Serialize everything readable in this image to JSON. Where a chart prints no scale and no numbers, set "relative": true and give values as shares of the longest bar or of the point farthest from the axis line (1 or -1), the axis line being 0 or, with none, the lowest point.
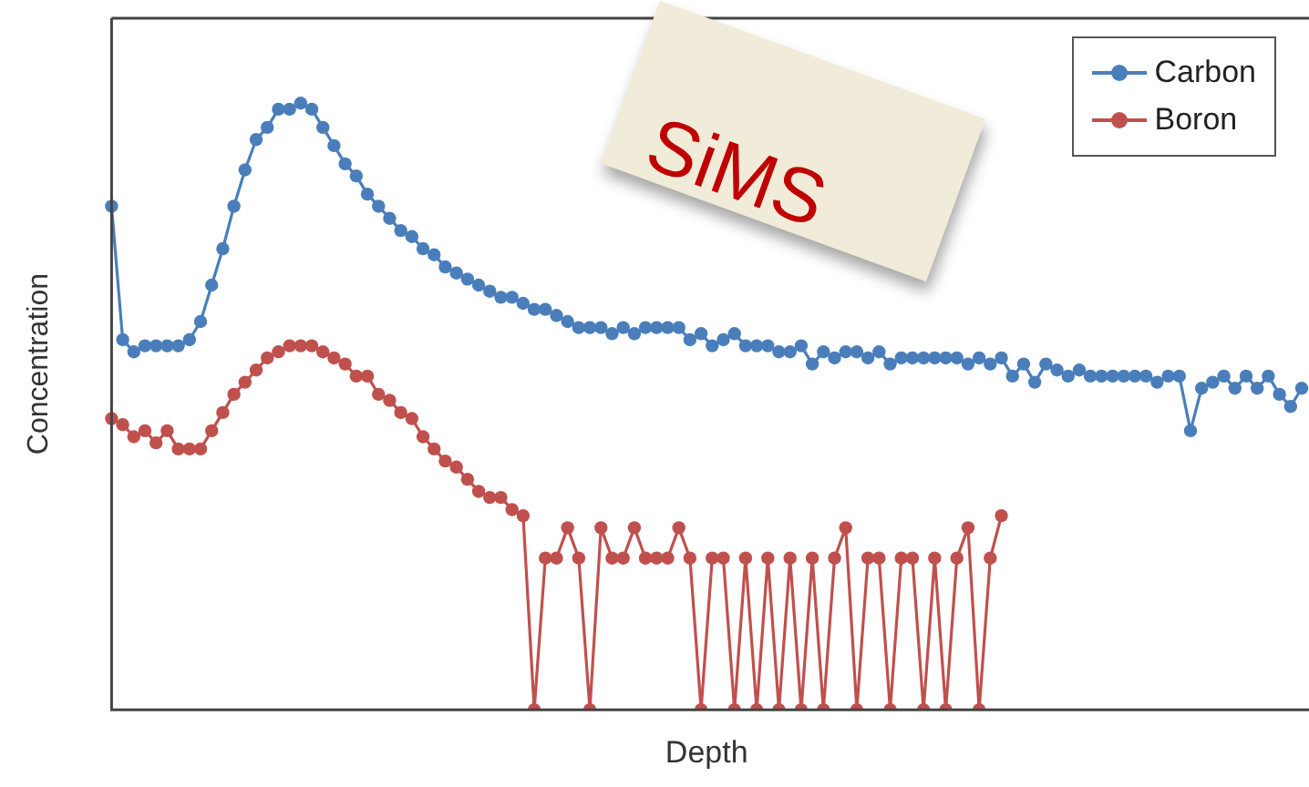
{
  "chart_data": {
    "type": "line",
    "relative": true,
    "xlabel": "Depth",
    "ylabel": "Concentration",
    "legend": "top right",
    "marker": "circle",
    "grid": false,
    "annotations": [
      "SiMS"
    ],
    "categories": [
      null,
      null,
      null,
      null,
      null,
      null,
      null,
      null,
      null,
      null,
      null,
      null,
      null,
      null,
      null,
      null,
      null,
      null,
      null,
      null,
      null,
      null,
      null,
      null,
      null,
      null,
      null,
      null,
      null,
      null,
      null,
      null,
      null,
      null,
      null,
      null,
      null,
      null,
      null,
      null,
      null,
      null,
      null,
      null,
      null,
      null,
      null,
      null,
      null,
      null,
      null,
      null,
      null,
      null,
      null,
      null,
      null,
      null,
      null,
      null,
      null,
      null,
      null,
      null,
      null,
      null,
      null,
      null,
      null,
      null,
      null,
      null,
      null,
      null,
      null,
      null,
      null,
      null,
      null,
      null,
      null,
      null,
      null,
      null,
      null,
      null,
      null,
      null,
      null,
      null,
      null,
      null,
      null,
      null,
      null,
      null,
      null,
      null,
      null,
      null,
      null,
      null,
      null,
      null,
      null,
      null,
      null,
      null
    ],
    "series": [
      {
        "name": "Carbon",
        "color": "#4a7ebb",
        "values": [
          0.83,
          0.61,
          0.59,
          0.6,
          0.6,
          0.6,
          0.6,
          0.61,
          0.64,
          0.7,
          0.76,
          0.83,
          0.89,
          0.94,
          0.96,
          0.99,
          0.99,
          1,
          0.99,
          0.96,
          0.93,
          0.9,
          0.88,
          0.85,
          0.83,
          0.81,
          0.79,
          0.78,
          0.76,
          0.75,
          0.73,
          0.72,
          0.71,
          0.7,
          0.69,
          0.68,
          0.68,
          0.67,
          0.66,
          0.66,
          0.65,
          0.64,
          0.63,
          0.63,
          0.63,
          0.62,
          0.63,
          0.62,
          0.63,
          0.63,
          0.63,
          0.63,
          0.61,
          0.62,
          0.6,
          0.61,
          0.62,
          0.6,
          0.6,
          0.6,
          0.59,
          0.59,
          0.6,
          0.57,
          0.59,
          0.58,
          0.59,
          0.59,
          0.58,
          0.59,
          0.57,
          0.58,
          0.58,
          0.58,
          0.58,
          0.58,
          0.58,
          0.57,
          0.58,
          0.57,
          0.58,
          0.55,
          0.57,
          0.54,
          0.57,
          0.56,
          0.55,
          0.56,
          0.55,
          0.55,
          0.55,
          0.55,
          0.55,
          0.55,
          0.54,
          0.55,
          0.55,
          0.46,
          0.53,
          0.54,
          0.55,
          0.53,
          0.55,
          0.53,
          0.55,
          0.52,
          0.5,
          0.53
        ]
      },
      {
        "name": "Boron",
        "color": "#c0504d",
        "values": [
          0.48,
          0.47,
          0.45,
          0.46,
          0.44,
          0.46,
          0.43,
          0.43,
          0.43,
          0.46,
          0.49,
          0.52,
          0.54,
          0.56,
          0.58,
          0.59,
          0.6,
          0.6,
          0.6,
          0.59,
          0.58,
          0.57,
          0.55,
          0.55,
          0.52,
          0.51,
          0.49,
          0.48,
          0.45,
          0.43,
          0.41,
          0.4,
          0.38,
          0.36,
          0.35,
          0.35,
          0.33,
          0.32,
          0,
          0.25,
          0.25,
          0.3,
          0.25,
          0,
          0.3,
          0.25,
          0.25,
          0.3,
          0.25,
          0.25,
          0.25,
          0.3,
          0.25,
          0,
          0.25,
          0.25,
          0,
          0.25,
          0,
          0.25,
          0,
          0.25,
          0,
          0.25,
          0,
          0.25,
          0.3,
          0,
          0.25,
          0.25,
          0,
          0.25,
          0.25,
          0,
          0.25,
          0,
          0.25,
          0.3,
          0,
          0.25,
          0.32,
          null,
          null,
          null,
          null,
          null,
          null,
          null,
          null,
          null,
          null,
          null,
          null,
          null,
          null,
          null,
          null,
          null,
          null,
          null,
          null,
          null,
          null,
          null,
          null,
          null,
          null,
          null
        ]
      }
    ]
  }
}
